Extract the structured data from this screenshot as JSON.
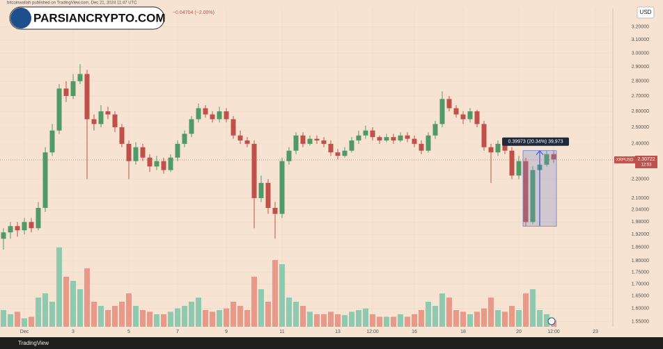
{
  "header": {
    "byline": "bitcoinwallah published on TradingView.com, Dec 21, 2024 11:47 UTC",
    "change": "−0.04704 (−2.00%)",
    "watermark": "PARSIANCRYPTO.COM",
    "currency": "USD"
  },
  "chart_data": {
    "type": "candlestick",
    "categories": [
      null,
      null,
      null,
      "Dec",
      null,
      null,
      null,
      null,
      null,
      null,
      "3",
      null,
      null,
      null,
      null,
      null,
      null,
      null,
      "5",
      null,
      null,
      null,
      null,
      null,
      null,
      "7",
      null,
      null,
      null,
      null,
      null,
      null,
      "9",
      null,
      null,
      null,
      null,
      null,
      null,
      null,
      "11",
      null,
      null,
      null,
      null,
      null,
      null,
      null,
      "13",
      null,
      null,
      null,
      null,
      "12:00",
      null,
      null,
      null,
      null,
      null,
      "16",
      null,
      null,
      null,
      null,
      null,
      null,
      "18",
      null,
      null,
      null,
      null,
      null,
      null,
      null,
      "20",
      null,
      null,
      null,
      null,
      "12:00",
      null,
      null,
      null,
      null,
      null,
      "23",
      null,
      null
    ],
    "open": [
      1.9,
      1.93,
      1.96,
      1.94,
      1.98,
      1.95,
      2.05,
      2.35,
      2.48,
      2.75,
      2.7,
      2.8,
      2.85,
      2.55,
      2.52,
      2.6,
      2.58,
      2.5,
      2.4,
      2.3,
      2.38,
      2.32,
      2.27,
      2.3,
      2.25,
      2.32,
      2.4,
      2.46,
      2.55,
      2.62,
      2.58,
      2.55,
      2.6,
      2.55,
      2.45,
      2.42,
      2.4,
      2.1,
      2.18,
      2.05,
      2.02,
      2.3,
      2.36,
      2.45,
      2.4,
      2.43,
      2.42,
      2.4,
      2.35,
      2.33,
      2.36,
      2.42,
      2.45,
      2.48,
      2.44,
      2.42,
      2.44,
      2.42,
      2.45,
      2.43,
      2.4,
      2.36,
      2.45,
      2.52,
      2.68,
      2.62,
      2.58,
      2.55,
      2.6,
      2.52,
      2.38,
      2.35,
      2.4,
      2.36,
      2.22,
      2.3,
      1.98,
      2.25,
      2.28,
      2.34,
      null,
      null,
      null,
      null,
      null,
      null,
      null,
      null
    ],
    "high": [
      1.95,
      1.98,
      1.98,
      2.0,
      2.0,
      2.08,
      2.38,
      2.52,
      2.78,
      2.8,
      2.85,
      2.92,
      2.88,
      2.58,
      2.64,
      2.63,
      2.6,
      2.52,
      2.42,
      2.41,
      2.4,
      2.34,
      2.33,
      2.32,
      2.34,
      2.42,
      2.48,
      2.57,
      2.65,
      2.64,
      2.6,
      2.63,
      2.62,
      2.57,
      2.48,
      2.44,
      2.42,
      2.22,
      2.2,
      2.08,
      2.32,
      2.38,
      2.47,
      2.47,
      2.45,
      2.45,
      2.44,
      2.42,
      2.37,
      2.38,
      2.44,
      2.48,
      2.51,
      2.5,
      2.45,
      2.46,
      2.46,
      2.47,
      2.47,
      2.45,
      2.42,
      2.47,
      2.54,
      2.73,
      2.7,
      2.64,
      2.6,
      2.62,
      2.61,
      2.54,
      2.4,
      2.42,
      2.42,
      2.38,
      2.33,
      2.32,
      2.27,
      2.3,
      2.36,
      2.36,
      null,
      null,
      null,
      null,
      null,
      null,
      null,
      null
    ],
    "low": [
      1.85,
      1.9,
      1.91,
      1.92,
      1.93,
      1.94,
      2.03,
      2.33,
      2.46,
      2.66,
      2.68,
      2.78,
      2.2,
      2.48,
      2.5,
      2.55,
      2.47,
      2.38,
      2.2,
      2.28,
      2.3,
      2.24,
      2.25,
      2.23,
      2.24,
      2.3,
      2.38,
      2.44,
      2.53,
      2.56,
      2.53,
      2.53,
      2.53,
      2.43,
      2.4,
      2.38,
      1.95,
      2.08,
      2.02,
      1.9,
      2.0,
      2.28,
      2.34,
      2.38,
      2.39,
      2.4,
      2.38,
      2.33,
      2.31,
      2.32,
      2.35,
      2.4,
      2.43,
      2.42,
      2.4,
      2.41,
      2.4,
      2.41,
      2.41,
      2.38,
      2.34,
      2.35,
      2.43,
      2.5,
      2.6,
      2.56,
      2.52,
      2.53,
      2.5,
      2.36,
      2.18,
      2.33,
      2.34,
      2.2,
      2.2,
      1.96,
      1.97,
      2.22,
      2.27,
      2.29,
      null,
      null,
      null,
      null,
      null,
      null,
      null,
      null
    ],
    "close": [
      1.93,
      1.96,
      1.94,
      1.98,
      1.95,
      2.05,
      2.35,
      2.48,
      2.75,
      2.7,
      2.8,
      2.85,
      2.55,
      2.52,
      2.6,
      2.58,
      2.5,
      2.4,
      2.3,
      2.38,
      2.32,
      2.27,
      2.3,
      2.25,
      2.32,
      2.4,
      2.46,
      2.55,
      2.62,
      2.58,
      2.55,
      2.6,
      2.55,
      2.45,
      2.42,
      2.4,
      2.1,
      2.18,
      2.05,
      2.02,
      2.3,
      2.36,
      2.45,
      2.4,
      2.43,
      2.42,
      2.4,
      2.35,
      2.33,
      2.36,
      2.42,
      2.45,
      2.48,
      2.44,
      2.42,
      2.44,
      2.42,
      2.45,
      2.43,
      2.4,
      2.36,
      2.45,
      2.52,
      2.68,
      2.62,
      2.58,
      2.55,
      2.6,
      2.52,
      2.38,
      2.35,
      2.4,
      2.36,
      2.22,
      2.3,
      1.98,
      2.25,
      2.28,
      2.34,
      2.31,
      null,
      null,
      null,
      null,
      null,
      null,
      null,
      null
    ],
    "volume": [
      20,
      15,
      18,
      10,
      12,
      35,
      40,
      30,
      95,
      60,
      55,
      45,
      70,
      30,
      25,
      20,
      25,
      30,
      40,
      25,
      20,
      18,
      15,
      15,
      18,
      22,
      25,
      30,
      35,
      20,
      18,
      20,
      22,
      30,
      25,
      20,
      60,
      45,
      30,
      80,
      75,
      35,
      30,
      25,
      18,
      15,
      15,
      18,
      15,
      14,
      18,
      20,
      22,
      15,
      12,
      12,
      12,
      15,
      12,
      15,
      20,
      30,
      25,
      40,
      35,
      20,
      18,
      15,
      18,
      22,
      35,
      20,
      18,
      25,
      20,
      40,
      45,
      20,
      15,
      8,
      null,
      null,
      null,
      null,
      null,
      null,
      null,
      null
    ],
    "volume_ylim": [
      0,
      100
    ],
    "ylim": [
      1.53,
      3.35
    ],
    "log_scale": true,
    "yticks": [
      {
        "value": 3.2,
        "label": "3.20000"
      },
      {
        "value": 3.1,
        "label": "3.10000"
      },
      {
        "value": 3.0,
        "label": "3.00000"
      },
      {
        "value": 2.9,
        "label": "2.90000"
      },
      {
        "value": 2.8,
        "label": "2.80000"
      },
      {
        "value": 2.7,
        "label": "2.70000"
      },
      {
        "value": 2.6,
        "label": "2.60000"
      },
      {
        "value": 2.5,
        "label": "2.50000"
      },
      {
        "value": 2.4,
        "label": "2.40000"
      },
      {
        "value": 2.2,
        "label": "2.20000"
      },
      {
        "value": 2.1,
        "label": "2.10000"
      },
      {
        "value": 2.04,
        "label": "2.04000"
      },
      {
        "value": 1.98,
        "label": "1.98000"
      },
      {
        "value": 1.92,
        "label": "1.92000"
      },
      {
        "value": 1.86,
        "label": "1.86000"
      },
      {
        "value": 1.8,
        "label": "1.80000"
      },
      {
        "value": 1.75,
        "label": "1.75000"
      },
      {
        "value": 1.7,
        "label": "1.70000"
      },
      {
        "value": 1.65,
        "label": "1.65000"
      },
      {
        "value": 1.6,
        "label": "1.60000"
      },
      {
        "value": 1.55,
        "label": "1.55000"
      }
    ],
    "colors": {
      "up": "#4f9a66",
      "down": "#c0504a",
      "volume_up": "#8fc9b0",
      "volume_down": "#e8998a"
    },
    "last_price": {
      "symbol": "XRPUSD",
      "value": 2.30722,
      "countdown": "12:53"
    },
    "measure": {
      "label": "0.39973 (20.34%) 39,973",
      "from": 1.96,
      "to": 2.36,
      "start": 75,
      "end": 79
    }
  },
  "footer": {
    "brand": "TradingView"
  }
}
